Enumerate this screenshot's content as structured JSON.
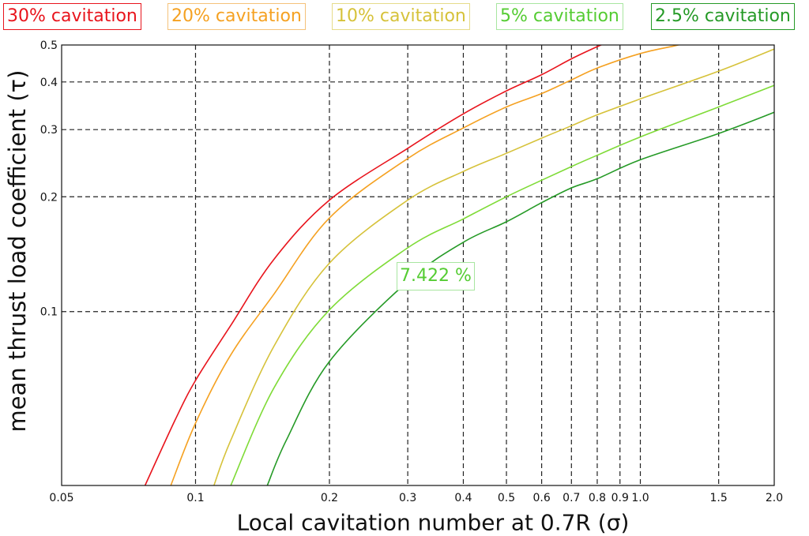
{
  "chart_data": {
    "type": "line",
    "xscale": "log",
    "yscale": "log",
    "xlabel": "Local cavitation number at 0.7R (σ)",
    "ylabel": "mean thrust load coefficient (τ)",
    "xlim": [
      0.05,
      2.0
    ],
    "ylim": [
      0.035,
      0.5
    ],
    "xticks": [
      {
        "value": 0.05,
        "label": "0.05"
      },
      {
        "value": 0.1,
        "label": "0.1"
      },
      {
        "value": 0.2,
        "label": "0.2"
      },
      {
        "value": 0.3,
        "label": "0.3"
      },
      {
        "value": 0.4,
        "label": "0.4"
      },
      {
        "value": 0.5,
        "label": "0.5"
      },
      {
        "value": 0.6,
        "label": "0.6"
      },
      {
        "value": 0.7,
        "label": "0.7"
      },
      {
        "value": 0.8,
        "label": "0.8"
      },
      {
        "value": 0.9,
        "label": "0.9"
      },
      {
        "value": 1.0,
        "label": "1.0"
      },
      {
        "value": 1.5,
        "label": "1.5"
      },
      {
        "value": 2.0,
        "label": "2.0"
      }
    ],
    "yticks": [
      {
        "value": 0.1,
        "label": "0.1"
      },
      {
        "value": 0.2,
        "label": "0.2"
      },
      {
        "value": 0.3,
        "label": "0.3"
      },
      {
        "value": 0.4,
        "label": "0.4"
      },
      {
        "value": 0.5,
        "label": "0.5"
      }
    ],
    "grid": true,
    "legend_position": "top",
    "series": [
      {
        "name": "30% cavitation",
        "color": "#e8141c",
        "x": [
          0.077,
          0.09,
          0.1,
          0.12,
          0.15,
          0.2,
          0.3,
          0.4,
          0.5,
          0.6,
          0.7,
          0.8,
          0.85
        ],
        "y": [
          0.035,
          0.052,
          0.066,
          0.092,
          0.137,
          0.196,
          0.268,
          0.33,
          0.379,
          0.418,
          0.46,
          0.495,
          0.51
        ]
      },
      {
        "name": "20% cavitation",
        "color": "#f5a121",
        "x": [
          0.088,
          0.1,
          0.12,
          0.15,
          0.2,
          0.3,
          0.4,
          0.5,
          0.6,
          0.7,
          0.8,
          1.0,
          1.2,
          1.3
        ],
        "y": [
          0.035,
          0.051,
          0.077,
          0.111,
          0.176,
          0.252,
          0.303,
          0.344,
          0.373,
          0.405,
          0.435,
          0.475,
          0.498,
          0.51
        ]
      },
      {
        "name": "10% cavitation",
        "color": "#d6c23a",
        "x": [
          0.11,
          0.12,
          0.15,
          0.2,
          0.3,
          0.4,
          0.5,
          0.6,
          0.7,
          0.8,
          1.0,
          1.5,
          2.0
        ],
        "y": [
          0.035,
          0.046,
          0.081,
          0.134,
          0.196,
          0.233,
          0.26,
          0.285,
          0.307,
          0.328,
          0.361,
          0.427,
          0.488
        ]
      },
      {
        "name": "5% cavitation",
        "color": "#7fdb37",
        "x": [
          0.12,
          0.15,
          0.2,
          0.3,
          0.4,
          0.5,
          0.6,
          0.7,
          0.8,
          1.0,
          1.5,
          2.0
        ],
        "y": [
          0.035,
          0.063,
          0.101,
          0.147,
          0.175,
          0.2,
          0.221,
          0.24,
          0.257,
          0.287,
          0.344,
          0.392
        ]
      },
      {
        "name": "2.5% cavitation",
        "color": "#259a26",
        "x": [
          0.145,
          0.16,
          0.2,
          0.3,
          0.4,
          0.5,
          0.6,
          0.7,
          0.8,
          1.0,
          1.5,
          2.0
        ],
        "y": [
          0.035,
          0.046,
          0.074,
          0.12,
          0.152,
          0.172,
          0.193,
          0.211,
          0.223,
          0.25,
          0.293,
          0.333
        ]
      }
    ],
    "annotations": [
      {
        "text": "7.422 %",
        "color": "#55cc33"
      }
    ]
  },
  "legend": [
    {
      "label": "30% cavitation",
      "color": "#e8141c",
      "border": "#e8141c"
    },
    {
      "label": "20% cavitation",
      "color": "#f5a121",
      "border": "#f5c27a"
    },
    {
      "label": "10% cavitation",
      "color": "#d6c23a",
      "border": "#e6dc8a"
    },
    {
      "label": "5% cavitation",
      "color": "#55cc33",
      "border": "#a8e6a0"
    },
    {
      "label": "2.5% cavitation",
      "color": "#259a26",
      "border": "#259a26"
    }
  ]
}
